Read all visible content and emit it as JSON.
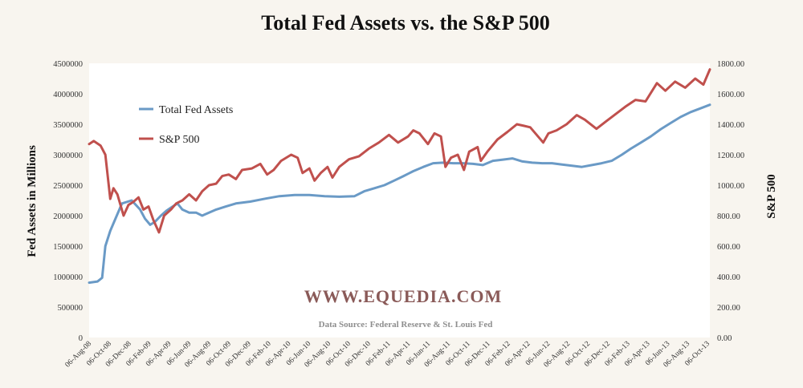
{
  "chart_data": {
    "type": "line",
    "title": "Total Fed Assets vs. the S&P 500",
    "ylabel_left": "Fed Assets in Millions",
    "ylabel_right": "S&P 500",
    "ylim_left": [
      0,
      4500000
    ],
    "ylim_right": [
      0,
      1800
    ],
    "yticks_left": [
      "0",
      "500000",
      "1000000",
      "1500000",
      "2000000",
      "2500000",
      "3000000",
      "3500000",
      "4000000",
      "4500000"
    ],
    "yticks_right": [
      "0.00",
      "200.00",
      "400.00",
      "600.00",
      "800.00",
      "1000.00",
      "1200.00",
      "1400.00",
      "1600.00",
      "1800.00"
    ],
    "x_labels": [
      "06-Aug-08",
      "06-Oct-08",
      "06-Dec-08",
      "06-Feb-09",
      "06-Apr-09",
      "06-Jun-09",
      "06-Aug-09",
      "06-Oct-09",
      "06-Dec-09",
      "06-Feb-10",
      "06-Apr-10",
      "06-Jun-10",
      "06-Aug-10",
      "06-Oct-10",
      "06-Dec-10",
      "06-Feb-11",
      "06-Apr-11",
      "06-Jun-11",
      "06-Aug-11",
      "06-Oct-11",
      "06-Dec-11",
      "06-Feb-12",
      "06-Apr-12",
      "06-Jun-12",
      "06-Aug-12",
      "06-Oct-12",
      "06-Dec-12",
      "06-Feb-13",
      "06-Apr-13",
      "06-Jun-13",
      "06-Aug-13",
      "06-Oct-13"
    ],
    "x_range": [
      "2008-08-06",
      "2013-10-30"
    ],
    "legend_position": "upper-left",
    "grid": false,
    "series": [
      {
        "name": "Total Fed Assets",
        "axis": "left",
        "color": "#6a9ac6",
        "points": [
          [
            "2008-08-06",
            900000
          ],
          [
            "2008-09-01",
            920000
          ],
          [
            "2008-09-15",
            980000
          ],
          [
            "2008-09-25",
            1500000
          ],
          [
            "2008-10-10",
            1750000
          ],
          [
            "2008-10-30",
            2000000
          ],
          [
            "2008-11-15",
            2200000
          ],
          [
            "2008-12-15",
            2250000
          ],
          [
            "2009-01-10",
            2100000
          ],
          [
            "2009-01-25",
            1950000
          ],
          [
            "2009-02-10",
            1850000
          ],
          [
            "2009-02-25",
            1900000
          ],
          [
            "2009-03-15",
            2000000
          ],
          [
            "2009-04-01",
            2080000
          ],
          [
            "2009-04-20",
            2150000
          ],
          [
            "2009-05-05",
            2200000
          ],
          [
            "2009-05-20",
            2100000
          ],
          [
            "2009-06-10",
            2050000
          ],
          [
            "2009-07-01",
            2050000
          ],
          [
            "2009-07-20",
            2000000
          ],
          [
            "2009-08-10",
            2050000
          ],
          [
            "2009-09-01",
            2100000
          ],
          [
            "2009-10-01",
            2150000
          ],
          [
            "2009-11-01",
            2200000
          ],
          [
            "2009-12-15",
            2230000
          ],
          [
            "2010-02-01",
            2280000
          ],
          [
            "2010-03-15",
            2320000
          ],
          [
            "2010-05-01",
            2340000
          ],
          [
            "2010-06-15",
            2340000
          ],
          [
            "2010-08-01",
            2320000
          ],
          [
            "2010-09-15",
            2310000
          ],
          [
            "2010-11-01",
            2320000
          ],
          [
            "2010-12-01",
            2400000
          ],
          [
            "2011-01-01",
            2450000
          ],
          [
            "2011-02-01",
            2500000
          ],
          [
            "2011-03-01",
            2570000
          ],
          [
            "2011-04-01",
            2650000
          ],
          [
            "2011-05-01",
            2730000
          ],
          [
            "2011-06-01",
            2800000
          ],
          [
            "2011-07-01",
            2860000
          ],
          [
            "2011-08-01",
            2870000
          ],
          [
            "2011-09-01",
            2860000
          ],
          [
            "2011-10-01",
            2860000
          ],
          [
            "2011-11-01",
            2850000
          ],
          [
            "2011-12-01",
            2830000
          ],
          [
            "2012-01-01",
            2900000
          ],
          [
            "2012-02-01",
            2920000
          ],
          [
            "2012-03-01",
            2940000
          ],
          [
            "2012-04-01",
            2890000
          ],
          [
            "2012-05-01",
            2870000
          ],
          [
            "2012-06-01",
            2860000
          ],
          [
            "2012-07-01",
            2860000
          ],
          [
            "2012-08-01",
            2840000
          ],
          [
            "2012-09-01",
            2820000
          ],
          [
            "2012-10-01",
            2800000
          ],
          [
            "2012-11-01",
            2830000
          ],
          [
            "2012-12-01",
            2860000
          ],
          [
            "2013-01-01",
            2900000
          ],
          [
            "2013-02-01",
            3000000
          ],
          [
            "2013-03-01",
            3100000
          ],
          [
            "2013-04-01",
            3200000
          ],
          [
            "2013-05-01",
            3300000
          ],
          [
            "2013-06-01",
            3420000
          ],
          [
            "2013-07-01",
            3520000
          ],
          [
            "2013-08-01",
            3620000
          ],
          [
            "2013-09-01",
            3700000
          ],
          [
            "2013-10-01",
            3760000
          ],
          [
            "2013-10-30",
            3820000
          ]
        ]
      },
      {
        "name": "S&P 500",
        "axis": "right",
        "color": "#c0504d",
        "points": [
          [
            "2008-08-06",
            1270
          ],
          [
            "2008-08-20",
            1290
          ],
          [
            "2008-09-10",
            1260
          ],
          [
            "2008-09-25",
            1200
          ],
          [
            "2008-10-10",
            910
          ],
          [
            "2008-10-20",
            980
          ],
          [
            "2008-11-01",
            940
          ],
          [
            "2008-11-20",
            800
          ],
          [
            "2008-12-05",
            870
          ],
          [
            "2008-12-20",
            890
          ],
          [
            "2009-01-05",
            920
          ],
          [
            "2009-01-20",
            840
          ],
          [
            "2009-02-05",
            860
          ],
          [
            "2009-02-20",
            770
          ],
          [
            "2009-03-09",
            690
          ],
          [
            "2009-03-25",
            800
          ],
          [
            "2009-04-15",
            840
          ],
          [
            "2009-05-01",
            880
          ],
          [
            "2009-05-20",
            900
          ],
          [
            "2009-06-10",
            940
          ],
          [
            "2009-07-01",
            900
          ],
          [
            "2009-07-20",
            960
          ],
          [
            "2009-08-10",
            1000
          ],
          [
            "2009-09-01",
            1010
          ],
          [
            "2009-09-20",
            1060
          ],
          [
            "2009-10-10",
            1070
          ],
          [
            "2009-11-01",
            1040
          ],
          [
            "2009-11-20",
            1100
          ],
          [
            "2009-12-20",
            1110
          ],
          [
            "2010-01-15",
            1140
          ],
          [
            "2010-02-05",
            1070
          ],
          [
            "2010-02-25",
            1100
          ],
          [
            "2010-03-20",
            1160
          ],
          [
            "2010-04-20",
            1200
          ],
          [
            "2010-05-10",
            1180
          ],
          [
            "2010-05-25",
            1080
          ],
          [
            "2010-06-15",
            1110
          ],
          [
            "2010-07-01",
            1030
          ],
          [
            "2010-07-20",
            1080
          ],
          [
            "2010-08-10",
            1120
          ],
          [
            "2010-08-25",
            1050
          ],
          [
            "2010-09-15",
            1120
          ],
          [
            "2010-10-15",
            1170
          ],
          [
            "2010-11-15",
            1190
          ],
          [
            "2010-12-15",
            1240
          ],
          [
            "2011-01-15",
            1280
          ],
          [
            "2011-02-15",
            1330
          ],
          [
            "2011-03-15",
            1280
          ],
          [
            "2011-04-15",
            1320
          ],
          [
            "2011-05-01",
            1360
          ],
          [
            "2011-05-20",
            1340
          ],
          [
            "2011-06-15",
            1270
          ],
          [
            "2011-07-05",
            1340
          ],
          [
            "2011-07-25",
            1320
          ],
          [
            "2011-08-08",
            1120
          ],
          [
            "2011-08-25",
            1180
          ],
          [
            "2011-09-15",
            1200
          ],
          [
            "2011-10-04",
            1100
          ],
          [
            "2011-10-20",
            1220
          ],
          [
            "2011-11-15",
            1250
          ],
          [
            "2011-11-25",
            1160
          ],
          [
            "2011-12-15",
            1220
          ],
          [
            "2012-01-15",
            1300
          ],
          [
            "2012-02-15",
            1350
          ],
          [
            "2012-03-15",
            1400
          ],
          [
            "2012-04-05",
            1390
          ],
          [
            "2012-04-25",
            1380
          ],
          [
            "2012-05-15",
            1330
          ],
          [
            "2012-06-04",
            1280
          ],
          [
            "2012-06-20",
            1340
          ],
          [
            "2012-07-15",
            1360
          ],
          [
            "2012-08-15",
            1400
          ],
          [
            "2012-09-15",
            1460
          ],
          [
            "2012-10-10",
            1430
          ],
          [
            "2012-11-15",
            1370
          ],
          [
            "2012-12-15",
            1420
          ],
          [
            "2013-01-15",
            1470
          ],
          [
            "2013-02-15",
            1520
          ],
          [
            "2013-03-15",
            1560
          ],
          [
            "2013-04-15",
            1550
          ],
          [
            "2013-05-20",
            1670
          ],
          [
            "2013-06-15",
            1620
          ],
          [
            "2013-07-15",
            1680
          ],
          [
            "2013-08-15",
            1640
          ],
          [
            "2013-09-15",
            1700
          ],
          [
            "2013-10-10",
            1660
          ],
          [
            "2013-10-30",
            1760
          ]
        ]
      }
    ],
    "annotations": [
      "WWW.EQUEDIA.COM",
      "Data Source: Federal Reserve & St. Louis Fed"
    ]
  }
}
